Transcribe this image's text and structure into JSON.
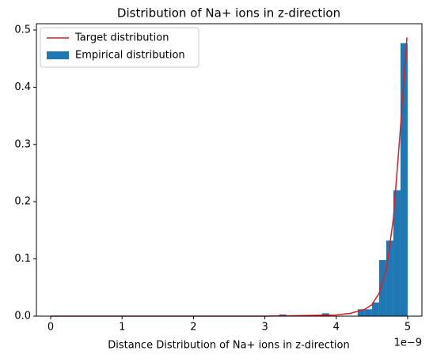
{
  "chart_data": {
    "type": "histogram",
    "title": "Distribution of Na+ ions in z-direction",
    "xlabel": "Distance Distribution of Na+ ions in z-direction",
    "x_offset_label": "1e−9",
    "name": "Empirical distribution",
    "color": "#1f77b4",
    "bins": [
      0,
      1e-10,
      2e-10,
      3e-10,
      4e-10,
      5e-10,
      6e-10,
      7e-10,
      8e-10,
      9e-10,
      1e-09,
      1.1e-09,
      1.2e-09,
      1.3e-09,
      1.4e-09,
      1.5e-09,
      1.6e-09,
      1.7e-09,
      1.8e-09,
      1.9e-09,
      2e-09,
      2.1e-09,
      2.2e-09,
      2.3e-09,
      2.4e-09,
      2.5e-09,
      2.6e-09,
      2.7e-09,
      2.8e-09,
      2.9e-09,
      3e-09,
      3.1e-09,
      3.2e-09,
      3.3e-09,
      3.4e-09,
      3.5e-09,
      3.6e-09,
      3.7e-09,
      3.8e-09,
      3.9e-09,
      4e-09,
      4.1e-09,
      4.2e-09,
      4.3e-09,
      4.4e-09,
      4.5e-09,
      4.6e-09,
      4.7e-09,
      4.8e-09,
      4.9e-09,
      5e-09
    ],
    "values": [
      0,
      0,
      0,
      0,
      0,
      0,
      0,
      0,
      0,
      0,
      0,
      0,
      0,
      0,
      0,
      0,
      0,
      0,
      0,
      0,
      0,
      0,
      0,
      0,
      0,
      0,
      0,
      0,
      0,
      0,
      0,
      0,
      0.003,
      0,
      0,
      0.002,
      0,
      0,
      0.005,
      0,
      0,
      0,
      0,
      0.012,
      0.012,
      0.024,
      0.098,
      0.132,
      0.22,
      0.477
    ],
    "line": {
      "name": "Target distribution",
      "color": "#e41a1c",
      "x": [
        0,
        1e-09,
        2e-09,
        3e-09,
        4e-09,
        4.2e-09,
        4.4e-09,
        4.5e-09,
        4.6e-09,
        4.7e-09,
        4.8e-09,
        4.85e-09,
        4.9e-09,
        4.95e-09,
        4.99e-09
      ],
      "values": [
        0,
        0,
        0,
        0,
        0.002,
        0.005,
        0.012,
        0.02,
        0.04,
        0.08,
        0.17,
        0.25,
        0.33,
        0.42,
        0.487
      ]
    },
    "xlim": [
      -2e-10,
      5.2e-09
    ],
    "ylim": [
      0,
      0.511
    ],
    "xticks": [
      0,
      {
        "value": 1e-09,
        "label": "1"
      },
      {
        "value": 2e-09,
        "label": "2"
      },
      {
        "value": 3e-09,
        "label": "3"
      },
      {
        "value": 4e-09,
        "label": "4"
      },
      {
        "value": 5e-09,
        "label": "5"
      }
    ],
    "yticks": [
      {
        "value": 0,
        "label": "0.0"
      },
      0.1,
      0.2,
      0.3,
      0.4,
      0.5
    ],
    "legend": "upper left"
  }
}
